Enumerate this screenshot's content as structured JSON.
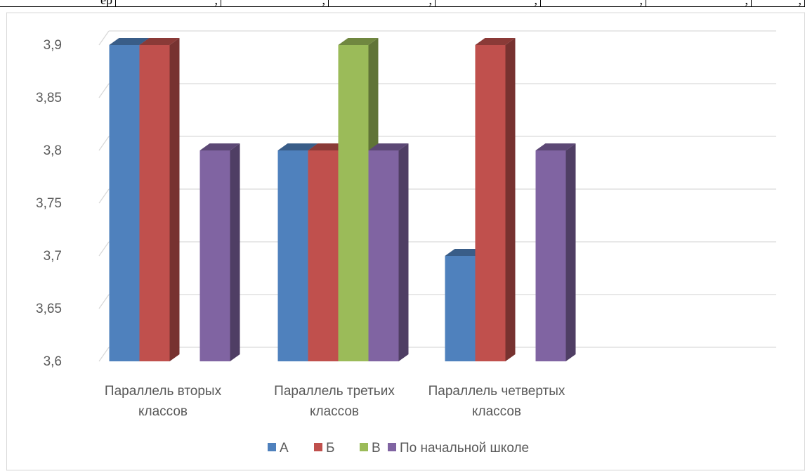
{
  "top_strip": {
    "cells": [
      {
        "text": "ер"
      },
      {
        "text": ","
      },
      {
        "text": ","
      },
      {
        "text": ","
      },
      {
        "text": ","
      },
      {
        "text": ","
      },
      {
        "text": ","
      },
      {
        "text": ","
      }
    ]
  },
  "chart_data": {
    "type": "bar",
    "style": "3d-clustered-column",
    "categories": [
      [
        "Параллель вторых",
        "классов"
      ],
      [
        "Параллель третьих",
        "классов"
      ],
      [
        "Параллель четвертых",
        "классов"
      ]
    ],
    "series": [
      {
        "name": "А",
        "color": "#4F81BD",
        "values": [
          3.9,
          3.8,
          3.7
        ]
      },
      {
        "name": "Б",
        "color": "#C0504D",
        "values": [
          3.9,
          3.8,
          3.9
        ]
      },
      {
        "name": "В",
        "color": "#9BBB59",
        "values": [
          null,
          3.9,
          null
        ]
      },
      {
        "name": "По начальной школе",
        "color": "#8064A2",
        "values": [
          3.8,
          3.8,
          3.8
        ]
      }
    ],
    "ylim": [
      3.6,
      3.9
    ],
    "yticks": [
      "3,6",
      "3,65",
      "3,7",
      "3,75",
      "3,8",
      "3,85",
      "3,9"
    ],
    "grid": true,
    "legend_position": "bottom"
  }
}
